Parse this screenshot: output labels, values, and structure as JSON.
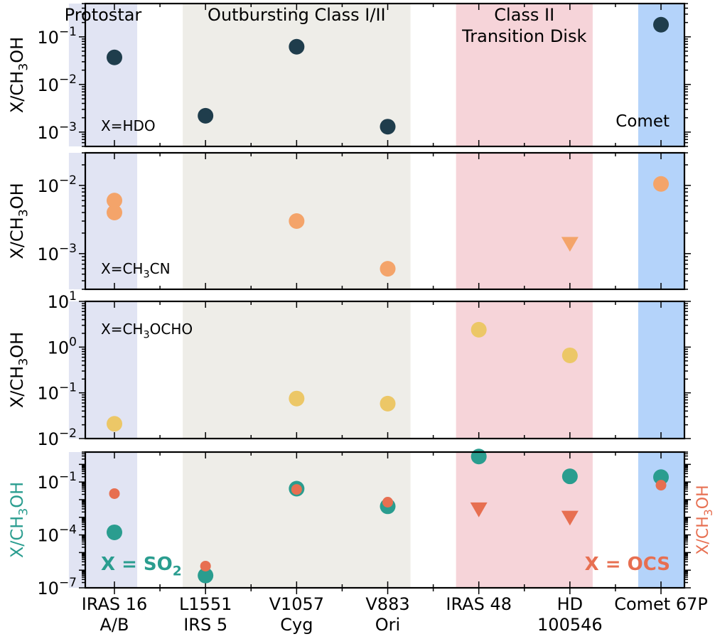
{
  "chart_data": {
    "type": "scatter",
    "categories": [
      {
        "line1": "IRAS 16",
        "line2": "A/B"
      },
      {
        "line1": "L1551",
        "line2": "IRS 5"
      },
      {
        "line1": "V1057",
        "line2": "Cyg"
      },
      {
        "line1": "V883",
        "line2": "Ori"
      },
      {
        "line1": "IRAS 48",
        "line2": ""
      },
      {
        "line1": "HD",
        "line2": "100546"
      },
      {
        "line1": "Comet 67P",
        "line2": ""
      }
    ],
    "regions": [
      {
        "label_lines": [
          "Protostar"
        ],
        "color": "#e1e4f3",
        "from": -0.5,
        "to": 0.25
      },
      {
        "label_lines": [
          "Outbursting Class I/II"
        ],
        "color": "#eeede8",
        "from": 0.75,
        "to": 3.25
      },
      {
        "label_lines": [
          "Class II",
          "Transition Disk"
        ],
        "color": "#f6d4d9",
        "from": 3.75,
        "to": 5.25
      },
      {
        "label_lines": [
          ""
        ],
        "color": "#b4d3fa",
        "from": 5.75,
        "to": 6.25
      }
    ],
    "panels": [
      {
        "ylabel": "X/CH₃OH",
        "yscale": "log",
        "ylim": [
          0.0005,
          0.5
        ],
        "yticks": [
          {
            "value": 0.001,
            "base": "10",
            "exp": "−3"
          },
          {
            "value": 0.01,
            "base": "10",
            "exp": "−2"
          },
          {
            "value": 0.1,
            "base": "10",
            "exp": "−1"
          }
        ],
        "annotation": "X=HDO",
        "corner_label": "Comet",
        "series": [
          {
            "marker": "circle",
            "color": "#1f3d4c",
            "size": 11,
            "points": [
              {
                "x": 0,
                "y": 0.037
              },
              {
                "x": 1,
                "y": 0.0022
              },
              {
                "x": 2,
                "y": 0.062
              },
              {
                "x": 3,
                "y": 0.0013
              },
              {
                "x": 6,
                "y": 0.18
              }
            ]
          }
        ]
      },
      {
        "ylabel": "X/CH₃OH",
        "yscale": "log",
        "ylim": [
          0.0003,
          0.03
        ],
        "yticks": [
          {
            "value": 0.001,
            "base": "10",
            "exp": "−3"
          },
          {
            "value": 0.01,
            "base": "10",
            "exp": "−2"
          }
        ],
        "annotation": "X=CH₃CN",
        "corner_label": "",
        "series": [
          {
            "marker": "circle",
            "color": "#f4a46a",
            "size": 11,
            "points": [
              {
                "x": 0,
                "y": 0.006
              },
              {
                "x": 0,
                "y": 0.004
              },
              {
                "x": 2,
                "y": 0.003
              },
              {
                "x": 3,
                "y": 0.0006
              },
              {
                "x": 6,
                "y": 0.0105
              }
            ]
          },
          {
            "marker": "triangle-down",
            "color": "#f4a46a",
            "size": 12,
            "points": [
              {
                "x": 5,
                "y": 0.0014
              }
            ]
          }
        ]
      },
      {
        "ylabel": "X/CH₃OH",
        "yscale": "log",
        "ylim": [
          0.01,
          10
        ],
        "yticks": [
          {
            "value": 0.01,
            "base": "10",
            "exp": "−2"
          },
          {
            "value": 0.1,
            "base": "10",
            "exp": "−1"
          },
          {
            "value": 1,
            "base": "10",
            "exp": "0"
          },
          {
            "value": 10,
            "base": "10",
            "exp": "1"
          }
        ],
        "annotation": "X=CH₃OCHO",
        "corner_label": "",
        "series": [
          {
            "marker": "circle",
            "color": "#ecc767",
            "size": 11,
            "points": [
              {
                "x": 0,
                "y": 0.021
              },
              {
                "x": 2,
                "y": 0.075
              },
              {
                "x": 3,
                "y": 0.058
              },
              {
                "x": 4,
                "y": 2.4
              },
              {
                "x": 5,
                "y": 0.66
              }
            ]
          }
        ]
      },
      {
        "ylabel": "X/CH₃OH",
        "ylabel_color": "#2a9d8f",
        "ylabel_right": "X/CH₃OH",
        "ylabel_right_color": "#e76f51",
        "yscale": "log",
        "ylim": [
          1e-07,
          5
        ],
        "yticks": [
          {
            "value": 1e-07,
            "base": "10",
            "exp": "−7"
          },
          {
            "value": 0.0001,
            "base": "10",
            "exp": "−4"
          },
          {
            "value": 0.1,
            "base": "10",
            "exp": "−1"
          }
        ],
        "legend": [
          {
            "text": "X = SO₂",
            "color": "#2a9d8f",
            "placement": "bottom-left"
          },
          {
            "text": "X = OCS",
            "color": "#e76f51",
            "placement": "bottom-right"
          }
        ],
        "series": [
          {
            "marker": "circle",
            "color": "#2a9d8f",
            "size": 11,
            "points": [
              {
                "x": 0,
                "y": 0.00014
              },
              {
                "x": 1,
                "y": 5e-07
              },
              {
                "x": 2,
                "y": 0.042
              },
              {
                "x": 3,
                "y": 0.0042
              },
              {
                "x": 4,
                "y": 2.8
              },
              {
                "x": 5,
                "y": 0.21
              },
              {
                "x": 6,
                "y": 0.19
              }
            ]
          },
          {
            "marker": "circle",
            "color": "#e76f51",
            "size": 7.5,
            "points": [
              {
                "x": 0,
                "y": 0.022
              },
              {
                "x": 1,
                "y": 1.7e-06
              },
              {
                "x": 2,
                "y": 0.038
              },
              {
                "x": 3,
                "y": 0.0072
              },
              {
                "x": 6,
                "y": 0.066
              }
            ]
          },
          {
            "marker": "triangle-down",
            "color": "#e76f51",
            "size": 12,
            "points": [
              {
                "x": 4,
                "y": 0.0029
              },
              {
                "x": 5,
                "y": 0.00098
              }
            ]
          }
        ]
      }
    ]
  }
}
